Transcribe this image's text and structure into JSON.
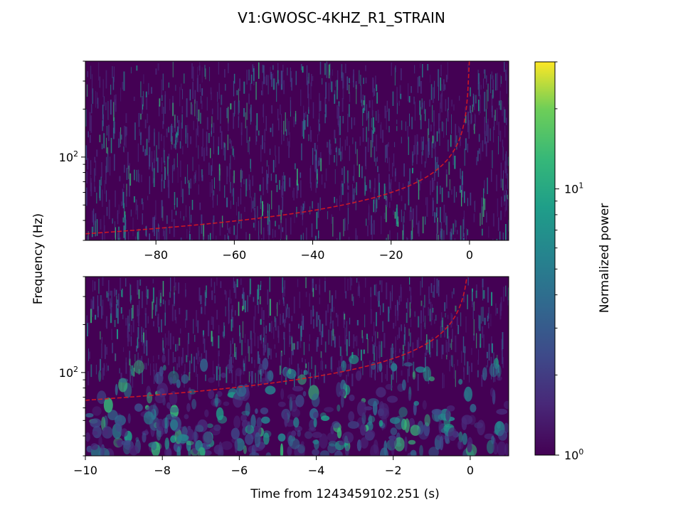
{
  "chart_data": [
    {
      "type": "heatmap",
      "title": "V1:GWOSC-4KHZ_R1_STRAIN",
      "panel": "top",
      "xlabel": "",
      "ylabel": "Frequency (Hz)",
      "xlim": [
        -98,
        10
      ],
      "x_ticks": [
        -80,
        -60,
        -40,
        -20,
        0
      ],
      "x_tick_labels": [
        "−80",
        "−60",
        "−40",
        "−20",
        "0"
      ],
      "ylim": [
        30,
        400
      ],
      "yscale": "log",
      "y_ticks": [
        100
      ],
      "y_tick_label_base": "10",
      "y_tick_label_exp": "2",
      "colormap": "viridis",
      "overlay": {
        "style": "dashed",
        "color": "#e31a1c",
        "description": "chirp track"
      }
    },
    {
      "type": "heatmap",
      "panel": "bottom",
      "xlabel": "Time from 1243459102.251 (s)",
      "ylabel": "Frequency (Hz)",
      "xlim": [
        -10,
        1
      ],
      "x_ticks": [
        -10,
        -8,
        -6,
        -4,
        -2,
        0
      ],
      "x_tick_labels": [
        "−10",
        "−8",
        "−6",
        "−4",
        "−2",
        "0"
      ],
      "ylim": [
        30,
        400
      ],
      "yscale": "log",
      "y_ticks": [
        100
      ],
      "y_tick_label_base": "10",
      "y_tick_label_exp": "2",
      "colormap": "viridis",
      "overlay": {
        "style": "dashed",
        "color": "#e31a1c",
        "description": "chirp track"
      }
    }
  ],
  "colorbar": {
    "label": "Normalized power",
    "scale": "log",
    "range": [
      1,
      30
    ],
    "ticks": [
      {
        "value": 1,
        "base": "10",
        "exp": "0"
      },
      {
        "value": 10,
        "base": "10",
        "exp": "1"
      }
    ],
    "colormap": "viridis"
  }
}
